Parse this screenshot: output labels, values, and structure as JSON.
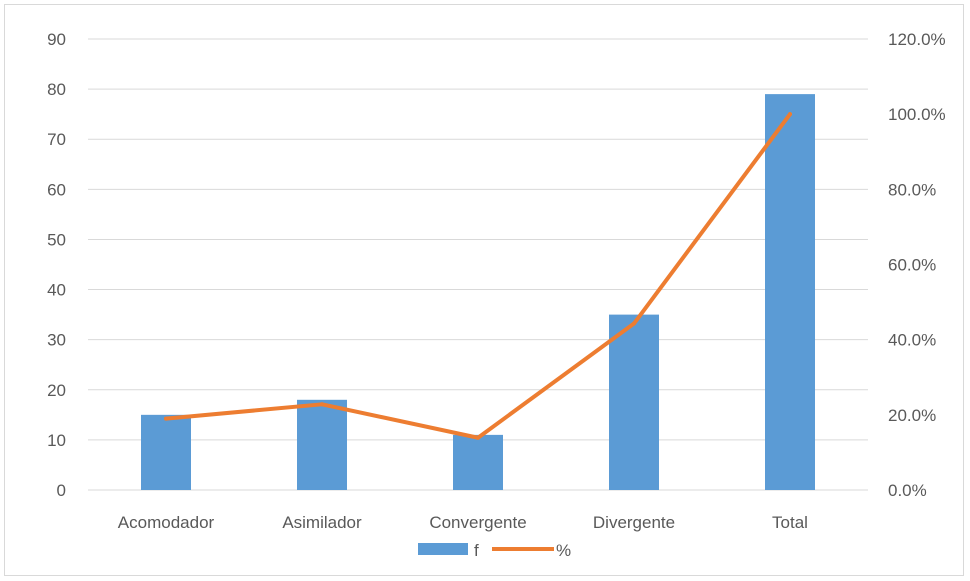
{
  "chart_data": {
    "type": "bar",
    "categories": [
      "Acomodador",
      "Asimilador",
      "Convergente",
      "Divergente",
      "Total"
    ],
    "series": [
      {
        "name": "f",
        "type": "bar",
        "axis": "left",
        "values": [
          15,
          18,
          11,
          35,
          79
        ],
        "color": "#5b9bd5"
      },
      {
        "name": "%",
        "type": "line",
        "axis": "right",
        "values": [
          19.0,
          22.8,
          13.9,
          44.3,
          100.0
        ],
        "color": "#ed7d31"
      }
    ],
    "y_left": {
      "min": 0,
      "max": 90,
      "ticks": [
        "0",
        "10",
        "20",
        "30",
        "40",
        "50",
        "60",
        "70",
        "80",
        "90"
      ]
    },
    "y_right": {
      "min": 0,
      "max": 120,
      "ticks": [
        "0.0%",
        "20.0%",
        "40.0%",
        "60.0%",
        "80.0%",
        "100.0%",
        "120.0%"
      ]
    },
    "grid": true,
    "legend": {
      "position": "bottom",
      "entries": [
        "f",
        "%"
      ]
    },
    "colors": {
      "grid": "#d9d9d9",
      "text": "#595959"
    }
  }
}
